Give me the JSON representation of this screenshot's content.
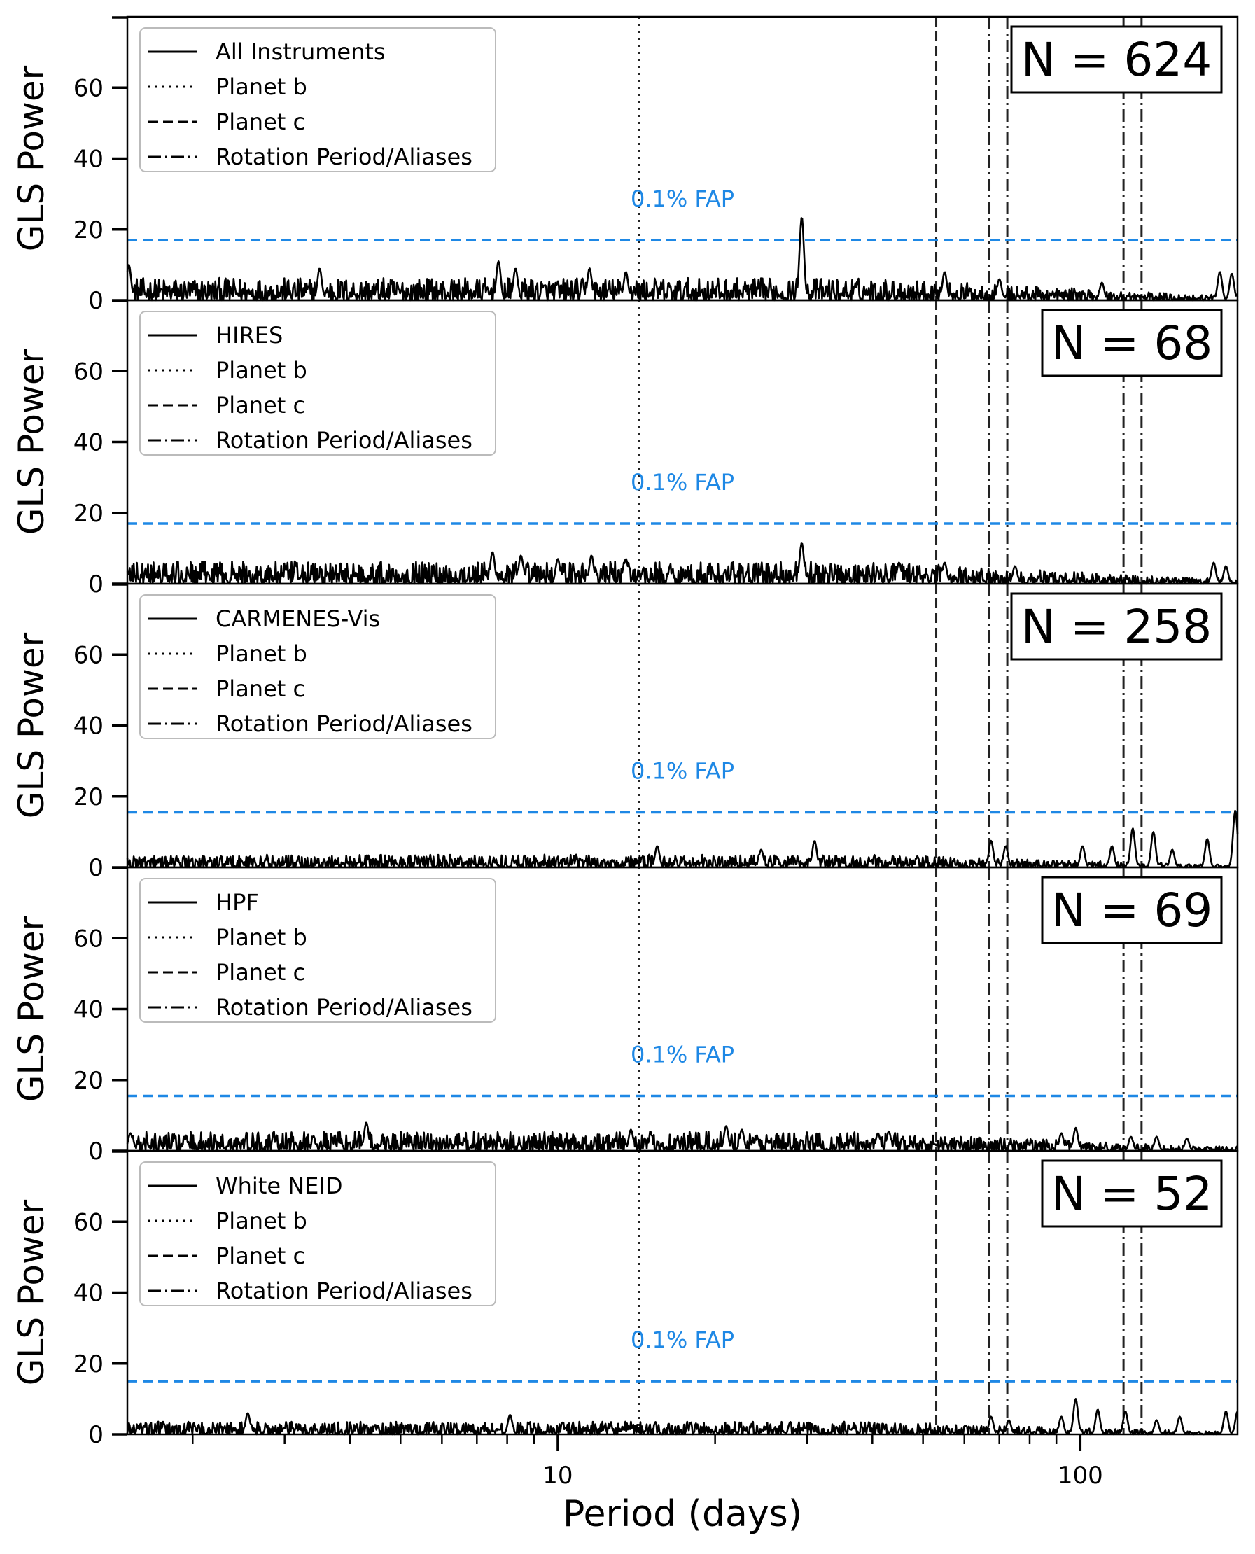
{
  "chart_data": {
    "type": "line",
    "xlabel": "Period (days)",
    "ylabel": "GLS Power",
    "xscale": "log",
    "xlim": [
      1.5,
      200
    ],
    "ylim": [
      0,
      80
    ],
    "xticks": [
      10,
      100
    ],
    "xtick_labels": [
      "10",
      "100"
    ],
    "yticks": [
      0,
      20,
      40,
      60
    ],
    "ytick_labels": [
      "0",
      "20",
      "40",
      "60"
    ],
    "fap_label": "0.1% FAP",
    "fap_color": "#1e88e5",
    "line_color": "#000000",
    "legend_common": [
      "Planet b",
      "Planet c",
      "Rotation Period/Aliases"
    ],
    "vlines": {
      "planet_b": [
        14.3
      ],
      "planet_c": [
        53.0
      ],
      "rotation_aliases": [
        67.0,
        72.5,
        121.0,
        131.0
      ]
    },
    "panels": [
      {
        "instrument": "All Instruments",
        "n_label": "N = 624",
        "fap_level": 17,
        "noise_level": 3.5,
        "peaks": [
          [
            1.51,
            10
          ],
          [
            3.5,
            9
          ],
          [
            7.7,
            11
          ],
          [
            8.3,
            9
          ],
          [
            11.5,
            9
          ],
          [
            13.5,
            8
          ],
          [
            29.3,
            23.5
          ],
          [
            55.0,
            8
          ],
          [
            70.0,
            6
          ],
          [
            110.0,
            5
          ],
          [
            185.0,
            8
          ],
          [
            195.0,
            7.5
          ]
        ]
      },
      {
        "instrument": "HIRES",
        "n_label": "N = 68",
        "fap_level": 17,
        "noise_level": 3.5,
        "peaks": [
          [
            7.5,
            9
          ],
          [
            8.5,
            8
          ],
          [
            10.0,
            7
          ],
          [
            11.6,
            8
          ],
          [
            13.5,
            7
          ],
          [
            29.3,
            11.5
          ],
          [
            45.0,
            6
          ],
          [
            55.0,
            6
          ],
          [
            75.0,
            5
          ],
          [
            180.0,
            6
          ],
          [
            190.0,
            5
          ]
        ]
      },
      {
        "instrument": "CARMENES-Vis",
        "n_label": "N = 258",
        "fap_level": 15.5,
        "noise_level": 2,
        "peaks": [
          [
            15.5,
            6
          ],
          [
            24.5,
            5
          ],
          [
            31.0,
            7.5
          ],
          [
            67.5,
            7.5
          ],
          [
            72.0,
            6
          ],
          [
            101.0,
            6
          ],
          [
            115.0,
            6
          ],
          [
            126.0,
            11
          ],
          [
            138.0,
            10
          ],
          [
            150.0,
            5
          ],
          [
            175.0,
            8
          ],
          [
            198.0,
            16
          ]
        ]
      },
      {
        "instrument": "HPF",
        "n_label": "N = 69",
        "fap_level": 15.5,
        "noise_level": 3,
        "peaks": [
          [
            1.52,
            5
          ],
          [
            4.3,
            8
          ],
          [
            13.8,
            6
          ],
          [
            21.0,
            7
          ],
          [
            22.5,
            6
          ],
          [
            41.0,
            5
          ],
          [
            43.0,
            5.5
          ],
          [
            92.0,
            5
          ],
          [
            98.0,
            6.5
          ],
          [
            125.0,
            4
          ],
          [
            140.0,
            4
          ],
          [
            160.0,
            3.5
          ]
        ]
      },
      {
        "instrument": "White NEID",
        "n_label": "N = 52",
        "fap_level": 15,
        "noise_level": 2,
        "peaks": [
          [
            2.55,
            6
          ],
          [
            8.1,
            5.5
          ],
          [
            67.5,
            5
          ],
          [
            73.0,
            4
          ],
          [
            92.0,
            5
          ],
          [
            98.0,
            10
          ],
          [
            108.0,
            7
          ],
          [
            122.0,
            6.5
          ],
          [
            140.0,
            4
          ],
          [
            155.0,
            5
          ],
          [
            190.0,
            6.5
          ],
          [
            200.0,
            6.5
          ]
        ]
      }
    ]
  }
}
